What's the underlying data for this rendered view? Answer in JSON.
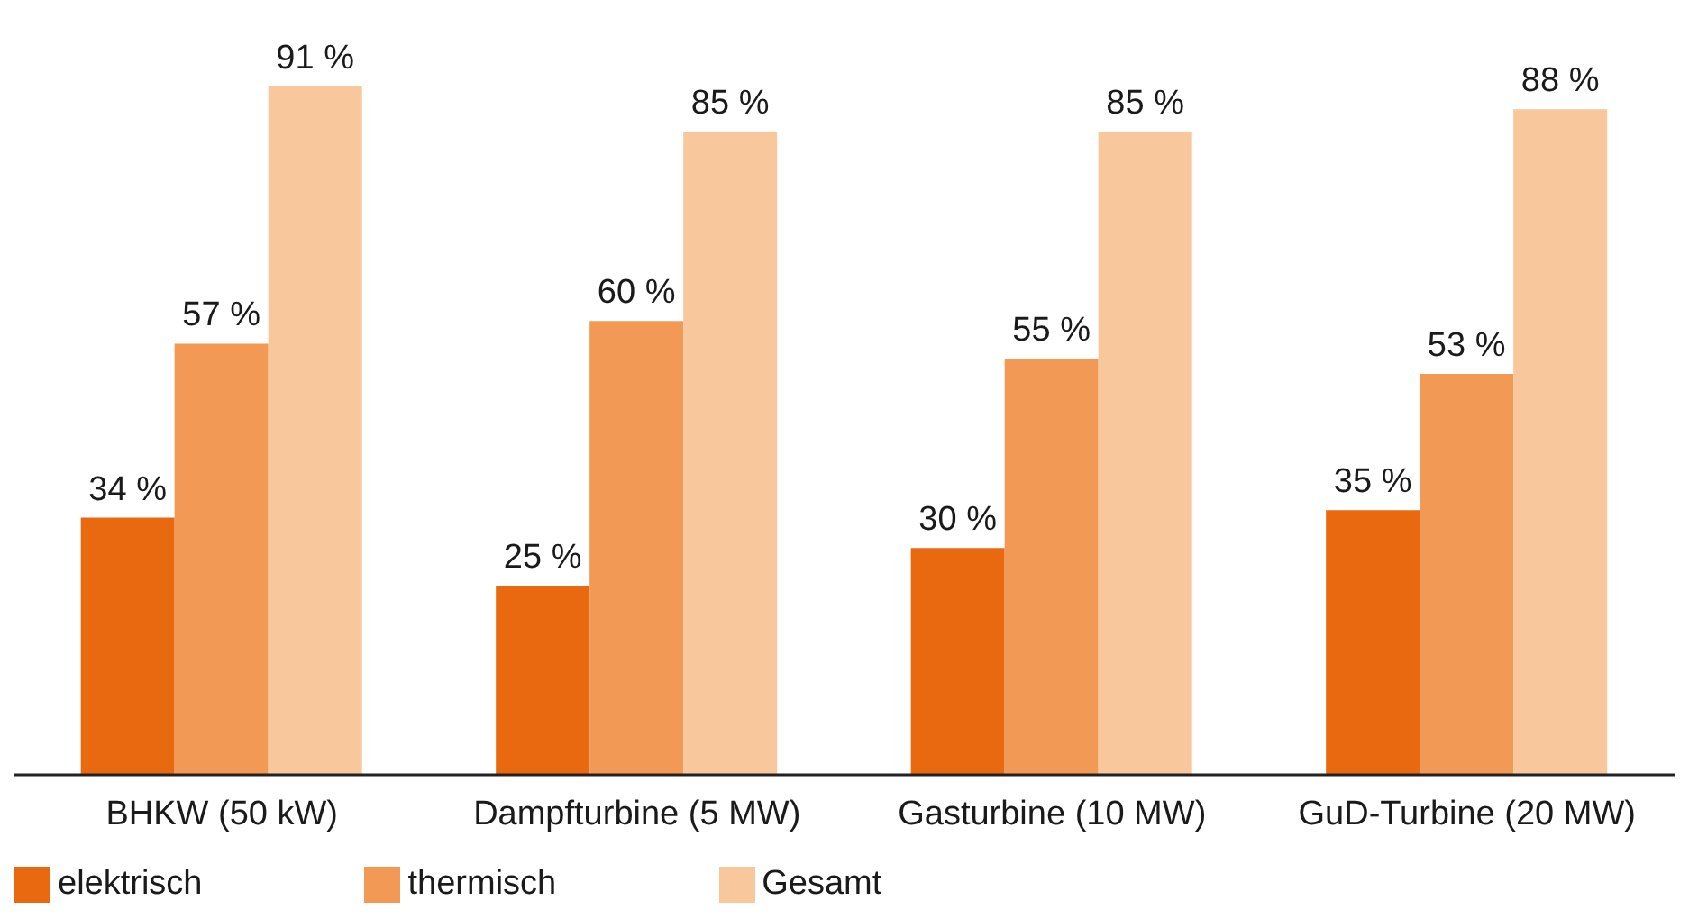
{
  "chart_data": {
    "type": "bar",
    "categories": [
      "BHKW (50 kW)",
      "Dampfturbine (5 MW)",
      "Gasturbine (10 MW)",
      "GuD-Turbine (20 MW)"
    ],
    "series": [
      {
        "name": "elektrisch",
        "color": "#e8690f",
        "values": [
          34,
          25,
          30,
          35
        ],
        "value_labels": [
          "34 %",
          "25 %",
          "30 %",
          "35 %"
        ]
      },
      {
        "name": "thermisch",
        "color": "#f29a55",
        "values": [
          57,
          60,
          55,
          53
        ],
        "value_labels": [
          "57 %",
          "60 %",
          "55 %",
          "53 %"
        ]
      },
      {
        "name": "Gesamt",
        "color": "#f9c79c",
        "values": [
          91,
          85,
          85,
          88
        ],
        "value_labels": [
          "91 %",
          "85 %",
          "85 %",
          "88 %"
        ]
      }
    ],
    "legend": "bottom left",
    "grid": false
  }
}
